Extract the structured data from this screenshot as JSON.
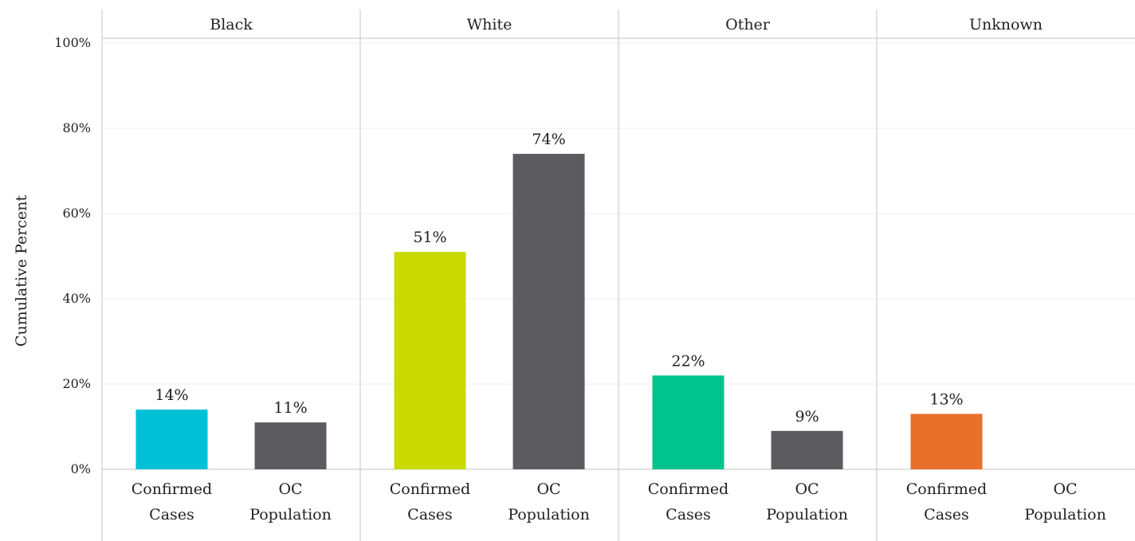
{
  "chart_data": {
    "type": "bar",
    "ylabel": "Cumulative Percent",
    "ylim": [
      0,
      100
    ],
    "yticks": [
      "0%",
      "20%",
      "40%",
      "60%",
      "80%",
      "100%"
    ],
    "grid": true,
    "legend": "none",
    "colors": {
      "Black": "#00c0d8",
      "White": "#c8da00",
      "Other": "#00c48c",
      "Unknown": "#e8702a",
      "population": "#5c5c60"
    },
    "categories": [
      [
        "Confirmed",
        "Cases"
      ],
      [
        "OC",
        "Population"
      ]
    ],
    "panels": [
      {
        "name": "Black",
        "values": [
          14,
          11
        ],
        "labels": [
          "14%",
          "11%"
        ]
      },
      {
        "name": "White",
        "values": [
          51,
          74
        ],
        "labels": [
          "51%",
          "74%"
        ]
      },
      {
        "name": "Other",
        "values": [
          22,
          9
        ],
        "labels": [
          "22%",
          "9%"
        ]
      },
      {
        "name": "Unknown",
        "values": [
          13,
          null
        ],
        "labels": [
          "13%",
          ""
        ]
      }
    ]
  }
}
